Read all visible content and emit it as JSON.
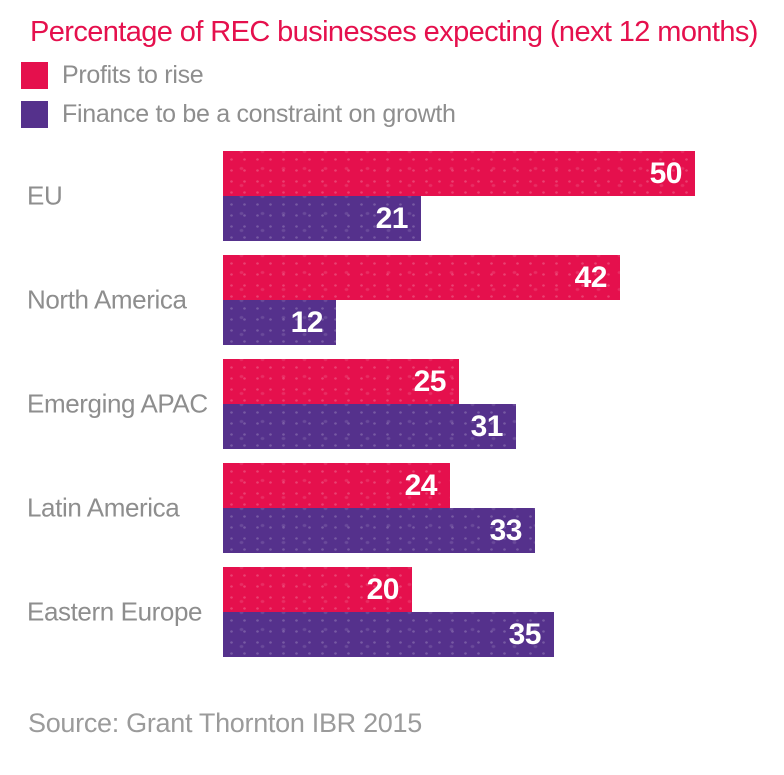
{
  "title": "Percentage of REC businesses expecting (next 12 months)",
  "legend": {
    "items": [
      {
        "label": "Profits to rise",
        "color": "#e5104d"
      },
      {
        "label": "Finance to be a constraint on growth",
        "color": "#55318c"
      }
    ]
  },
  "source": "Source: Grant Thornton IBR 2015",
  "colors": {
    "profits_bar": "#e5104d",
    "finance_bar": "#55318c",
    "title_text": "#e5104d",
    "category_text": "#8e8e8e",
    "source_text": "#9b9b9b",
    "value_text": "#ffffff",
    "background": "#ffffff"
  },
  "chart_data": {
    "type": "bar",
    "orientation": "horizontal",
    "title": "Percentage of REC businesses expecting (next 12 months)",
    "categories": [
      "EU",
      "North America",
      "Emerging APAC",
      "Latin America",
      "Eastern Europe"
    ],
    "series": [
      {
        "name": "Profits to rise",
        "color": "#e5104d",
        "values": [
          50,
          42,
          25,
          24,
          20
        ]
      },
      {
        "name": "Finance to be a constraint on growth",
        "color": "#55318c",
        "values": [
          21,
          12,
          31,
          33,
          35
        ]
      }
    ],
    "value_labels_shown": true,
    "axis_shown": false,
    "grid": false,
    "xlim": [
      0,
      59
    ],
    "legend_position": "top-left",
    "source": "Source: Grant Thornton IBR 2015"
  }
}
